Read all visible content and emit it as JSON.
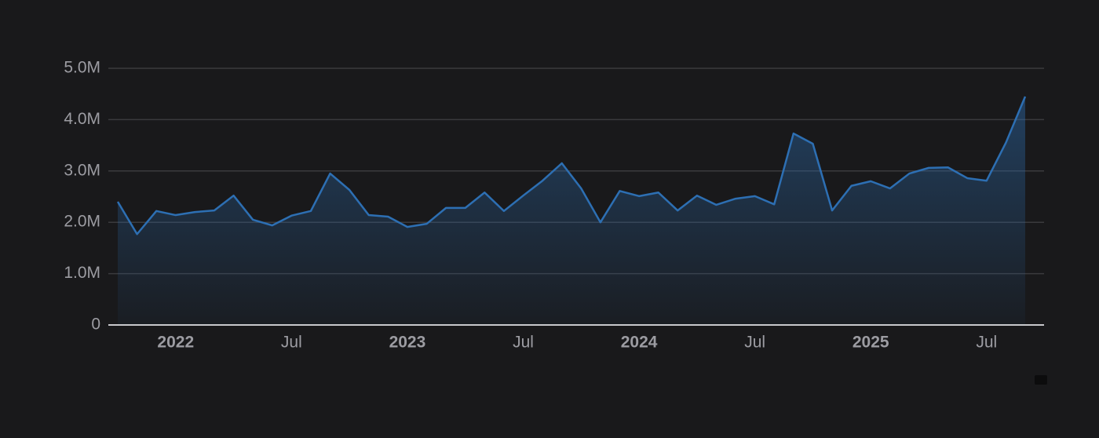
{
  "chart_data": {
    "type": "area",
    "color": "#2d6fb3",
    "grid": true,
    "x": [
      "2021-10",
      "2021-11",
      "2021-12",
      "2022-01",
      "2022-02",
      "2022-03",
      "2022-04",
      "2022-05",
      "2022-06",
      "2022-07",
      "2022-08",
      "2022-09",
      "2022-10",
      "2022-11",
      "2022-12",
      "2023-01",
      "2023-02",
      "2023-03",
      "2023-04",
      "2023-05",
      "2023-06",
      "2023-07",
      "2023-08",
      "2023-09",
      "2023-10",
      "2023-11",
      "2023-12",
      "2024-01",
      "2024-02",
      "2024-03",
      "2024-04",
      "2024-05",
      "2024-06",
      "2024-07",
      "2024-08",
      "2024-09",
      "2024-10",
      "2024-11",
      "2024-12",
      "2025-01",
      "2025-02",
      "2025-03",
      "2025-04",
      "2025-05",
      "2025-06",
      "2025-07",
      "2025-08",
      "2025-09"
    ],
    "values": [
      2400000,
      1770000,
      2220000,
      2140000,
      2200000,
      2230000,
      2520000,
      2050000,
      1940000,
      2130000,
      2220000,
      2950000,
      2630000,
      2140000,
      2110000,
      1910000,
      1970000,
      2280000,
      2280000,
      2580000,
      2220000,
      2520000,
      2810000,
      3150000,
      2660000,
      2000000,
      2610000,
      2510000,
      2580000,
      2230000,
      2520000,
      2340000,
      2460000,
      2510000,
      2350000,
      3730000,
      3530000,
      2230000,
      2710000,
      2800000,
      2660000,
      2950000,
      3060000,
      3070000,
      2860000,
      2810000,
      3550000,
      4450000
    ],
    "xticks": [
      {
        "value": "2022-01",
        "label": "2022"
      },
      {
        "value": "2022-07",
        "label": "Jul"
      },
      {
        "value": "2023-01",
        "label": "2023"
      },
      {
        "value": "2023-07",
        "label": "Jul"
      },
      {
        "value": "2024-01",
        "label": "2024"
      },
      {
        "value": "2024-07",
        "label": "Jul"
      },
      {
        "value": "2025-01",
        "label": "2025"
      },
      {
        "value": "2025-07",
        "label": "Jul"
      }
    ],
    "ylim": [
      0,
      5000000
    ],
    "yticks": [
      0,
      {
        "value": 1000000,
        "label": "1.0M"
      },
      {
        "value": 2000000,
        "label": "2.0M"
      },
      {
        "value": 3000000,
        "label": "3.0M"
      },
      {
        "value": 4000000,
        "label": "4.0M"
      },
      {
        "value": 5000000,
        "label": "5.0M"
      }
    ]
  }
}
